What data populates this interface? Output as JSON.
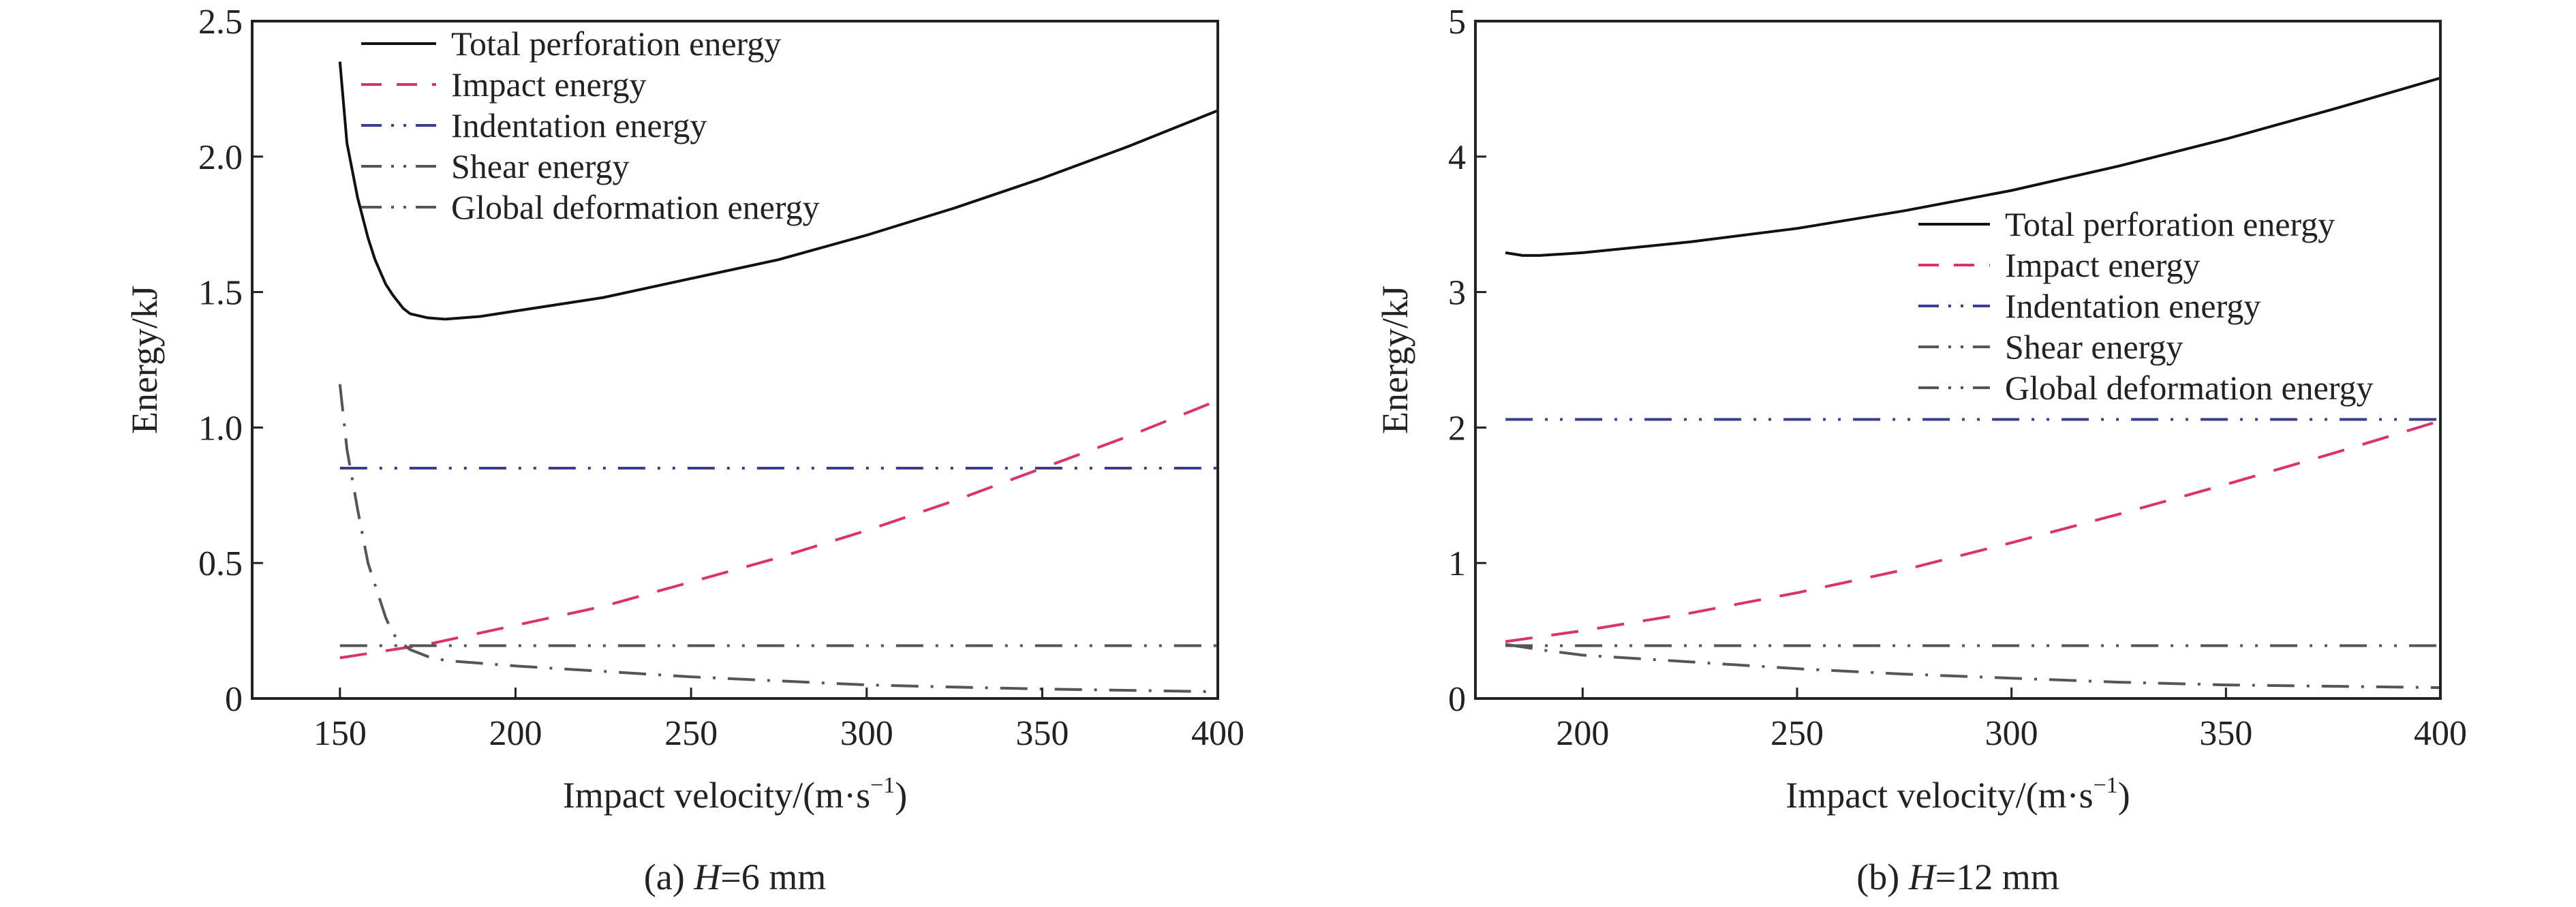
{
  "chart_data": [
    {
      "type": "line",
      "caption_prefix": "(a) ",
      "caption_italic": "H",
      "caption_suffix": "=6 mm",
      "xlabel": "Impact velocity/(m·s",
      "xlabel_sup": "−1",
      "xlabel_end": ")",
      "ylabel": "Energy/kJ",
      "xlim": [
        125,
        400
      ],
      "ylim": [
        0,
        2.5
      ],
      "xticks": [
        150,
        200,
        250,
        300,
        350,
        400
      ],
      "yticks": [
        0,
        0.5,
        1.0,
        1.5,
        2.0,
        2.5
      ],
      "ytick_labels": [
        "0",
        "0.5",
        "1.0",
        "1.5",
        "2.0",
        "2.5"
      ],
      "grid": false,
      "legend_placement": "top-left",
      "series": [
        {
          "name": "Total perforation energy",
          "color": "#111111",
          "dash": "solid",
          "x": [
            150,
            152,
            155,
            158,
            160,
            163,
            165,
            168,
            170,
            175,
            180,
            190,
            200,
            225,
            250,
            275,
            300,
            325,
            350,
            375,
            400
          ],
          "y": [
            2.35,
            2.05,
            1.85,
            1.7,
            1.62,
            1.53,
            1.49,
            1.44,
            1.42,
            1.405,
            1.4,
            1.41,
            1.43,
            1.48,
            1.55,
            1.62,
            1.71,
            1.81,
            1.92,
            2.04,
            2.17
          ]
        },
        {
          "name": "Impact energy",
          "color": "#d9336a",
          "dash": "dashed",
          "x": [
            150,
            175,
            200,
            225,
            250,
            275,
            300,
            325,
            350,
            375,
            400
          ],
          "y": [
            0.15,
            0.2,
            0.27,
            0.34,
            0.43,
            0.52,
            0.62,
            0.73,
            0.85,
            0.97,
            1.1
          ]
        },
        {
          "name": "Indentation energy",
          "color": "#3b3b8f",
          "dash": "dash-dot-dot",
          "x": [
            150,
            400
          ],
          "y": [
            0.85,
            0.85
          ]
        },
        {
          "name": "Shear energy",
          "color": "#555555",
          "dash": "dash-dot-dot",
          "x": [
            150,
            400
          ],
          "y": [
            0.195,
            0.195
          ]
        },
        {
          "name": "Global deformation energy",
          "color": "#555555",
          "dash": "dash-dot",
          "x": [
            150,
            152,
            155,
            158,
            160,
            163,
            165,
            168,
            170,
            175,
            180,
            190,
            200,
            225,
            250,
            275,
            300,
            325,
            350,
            375,
            400
          ],
          "y": [
            1.16,
            0.92,
            0.7,
            0.5,
            0.42,
            0.3,
            0.24,
            0.2,
            0.18,
            0.155,
            0.14,
            0.13,
            0.12,
            0.1,
            0.08,
            0.065,
            0.05,
            0.042,
            0.035,
            0.03,
            0.025
          ]
        }
      ]
    },
    {
      "type": "line",
      "caption_prefix": "(b) ",
      "caption_italic": "H",
      "caption_suffix": "=12 mm",
      "xlabel": "Impact velocity/(m·s",
      "xlabel_sup": "−1",
      "xlabel_end": ")",
      "ylabel": "Energy/kJ",
      "xlim": [
        175,
        400
      ],
      "ylim": [
        0,
        5
      ],
      "xticks": [
        200,
        250,
        300,
        350,
        400
      ],
      "yticks": [
        0,
        1,
        2,
        3,
        4,
        5
      ],
      "ytick_labels": [
        "0",
        "1",
        "2",
        "3",
        "4",
        "5"
      ],
      "grid": false,
      "legend_placement": "center-right",
      "series": [
        {
          "name": "Total perforation energy",
          "color": "#111111",
          "dash": "solid",
          "x": [
            182,
            186,
            190,
            200,
            225,
            250,
            275,
            300,
            325,
            350,
            375,
            400
          ],
          "y": [
            3.29,
            3.27,
            3.27,
            3.29,
            3.37,
            3.47,
            3.6,
            3.75,
            3.93,
            4.13,
            4.35,
            4.58
          ]
        },
        {
          "name": "Impact energy",
          "color": "#d9336a",
          "dash": "dashed",
          "x": [
            182,
            200,
            225,
            250,
            275,
            300,
            325,
            350,
            375,
            400
          ],
          "y": [
            0.42,
            0.5,
            0.63,
            0.78,
            0.95,
            1.15,
            1.36,
            1.58,
            1.81,
            2.05
          ]
        },
        {
          "name": "Indentation energy",
          "color": "#3b3b8f",
          "dash": "dash-dot-dot",
          "x": [
            182,
            400
          ],
          "y": [
            2.06,
            2.06
          ]
        },
        {
          "name": "Shear energy",
          "color": "#555555",
          "dash": "dash-dot-dot",
          "x": [
            182,
            400
          ],
          "y": [
            0.39,
            0.39
          ]
        },
        {
          "name": "Global deformation energy",
          "color": "#555555",
          "dash": "dash-dot",
          "x": [
            182,
            190,
            200,
            225,
            250,
            275,
            300,
            325,
            350,
            375,
            400
          ],
          "y": [
            0.4,
            0.36,
            0.32,
            0.27,
            0.22,
            0.18,
            0.15,
            0.12,
            0.1,
            0.09,
            0.08
          ]
        }
      ]
    }
  ]
}
